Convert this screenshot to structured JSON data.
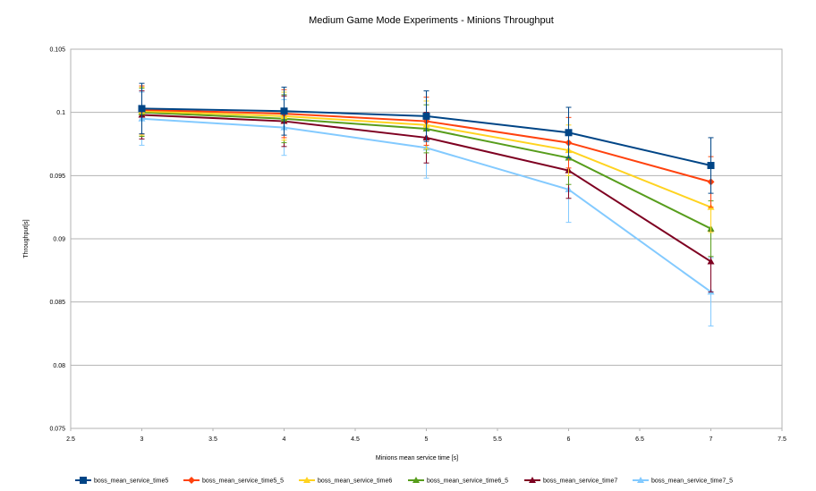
{
  "chart_data": {
    "type": "line",
    "title": "Medium Game Mode Experiments - Minions Throughput",
    "xlabel": "Minions mean service time [s]",
    "ylabel": "Throughput[s]",
    "xlim": [
      2.5,
      7.5
    ],
    "ylim": [
      0.075,
      0.105
    ],
    "xticks": [
      "2.5",
      "3",
      "3.5",
      "4",
      "4.5",
      "5",
      "5.5",
      "6",
      "6.5",
      "7",
      "7.5"
    ],
    "yticks": [
      "0.075",
      "0.08",
      "0.085",
      "0.09",
      "0.095",
      "0.1",
      "0.105"
    ],
    "grid": true,
    "legend": "bottom",
    "x": [
      3,
      4,
      5,
      6,
      7
    ],
    "series": [
      {
        "name": "boss_mean_service_time5",
        "color": "#004586",
        "marker": "square",
        "values": [
          0.1003,
          0.1001,
          0.0997,
          0.0984,
          0.0958
        ],
        "err": [
          0.002,
          0.0019,
          0.002,
          0.002,
          0.0022
        ]
      },
      {
        "name": "boss_mean_service_time5_5",
        "color": "#ff420e",
        "marker": "diamond",
        "values": [
          0.1002,
          0.0999,
          0.0993,
          0.0976,
          0.0945
        ],
        "err": [
          0.0019,
          0.0019,
          0.0019,
          0.002,
          0.002
        ]
      },
      {
        "name": "boss_mean_service_time6",
        "color": "#ffd320",
        "marker": "triangle",
        "values": [
          0.1001,
          0.0997,
          0.099,
          0.097,
          0.0925
        ],
        "err": [
          0.0019,
          0.0019,
          0.0019,
          0.002,
          0.002
        ]
      },
      {
        "name": "boss_mean_service_time6_5",
        "color": "#579d1c",
        "marker": "triangle",
        "values": [
          0.1,
          0.0995,
          0.0987,
          0.0964,
          0.0908
        ],
        "err": [
          0.0019,
          0.0019,
          0.0019,
          0.0021,
          0.0022
        ]
      },
      {
        "name": "boss_mean_service_time7",
        "color": "#7e0021",
        "marker": "triangle",
        "values": [
          0.0998,
          0.0993,
          0.098,
          0.0954,
          0.0882
        ],
        "err": [
          0.0019,
          0.002,
          0.002,
          0.0022,
          0.0024
        ]
      },
      {
        "name": "boss_mean_service_time7_5",
        "color": "#83caff",
        "marker": "triangle",
        "values": [
          0.0995,
          0.0988,
          0.0972,
          0.0939,
          0.0858
        ],
        "err": [
          0.0021,
          0.0022,
          0.0024,
          0.0026,
          0.0027
        ]
      }
    ]
  }
}
